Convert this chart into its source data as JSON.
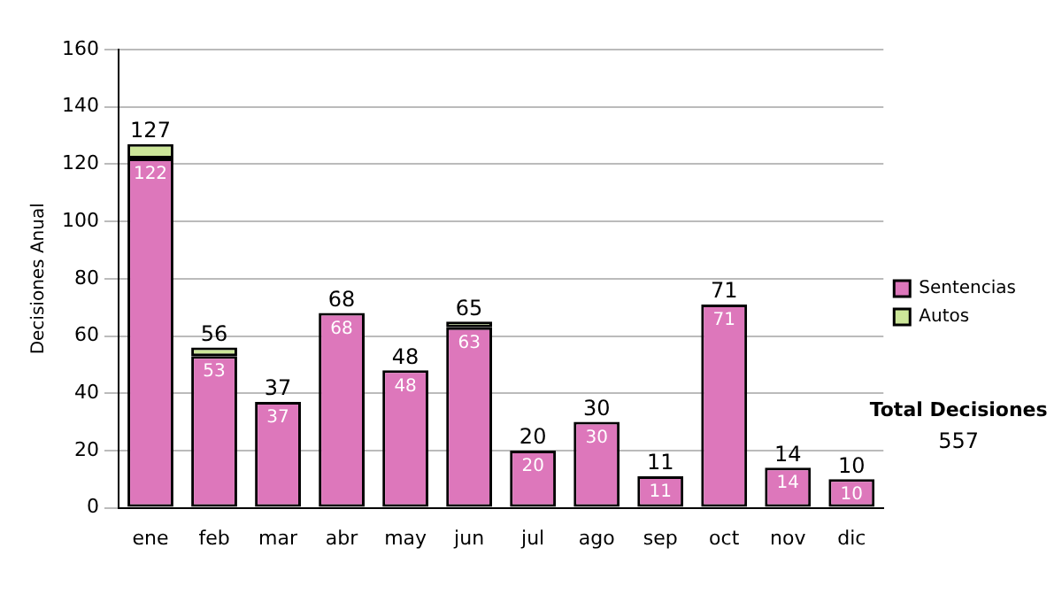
{
  "chart_data": {
    "type": "bar",
    "stacked": true,
    "ylabel": "Decisiones Anual",
    "categories": [
      "ene",
      "feb",
      "mar",
      "abr",
      "may",
      "jun",
      "jul",
      "ago",
      "sep",
      "oct",
      "nov",
      "dic"
    ],
    "series": [
      {
        "name": "Sentencias",
        "color": "#dd77bb",
        "values": [
          122,
          53,
          37,
          68,
          48,
          63,
          20,
          30,
          11,
          71,
          14,
          10
        ],
        "value_labels": [
          "122",
          "53",
          "37",
          "68",
          "48",
          "63",
          "20",
          "30",
          "11",
          "71",
          "14",
          "10"
        ]
      },
      {
        "name": "Autos",
        "color": "#cce699",
        "values": [
          5,
          3,
          0,
          0,
          0,
          2,
          0,
          0,
          0,
          0,
          0,
          0
        ]
      }
    ],
    "totals": [
      "127",
      "56",
      "37",
      "68",
      "48",
      "65",
      "20",
      "30",
      "11",
      "71",
      "14",
      "10"
    ],
    "ylim": [
      0,
      160
    ],
    "yticks": [
      0,
      20,
      40,
      60,
      80,
      100,
      120,
      140,
      160
    ],
    "grid": "y",
    "legend": "right",
    "annotations": [
      "Total Decisiones",
      "557"
    ]
  }
}
